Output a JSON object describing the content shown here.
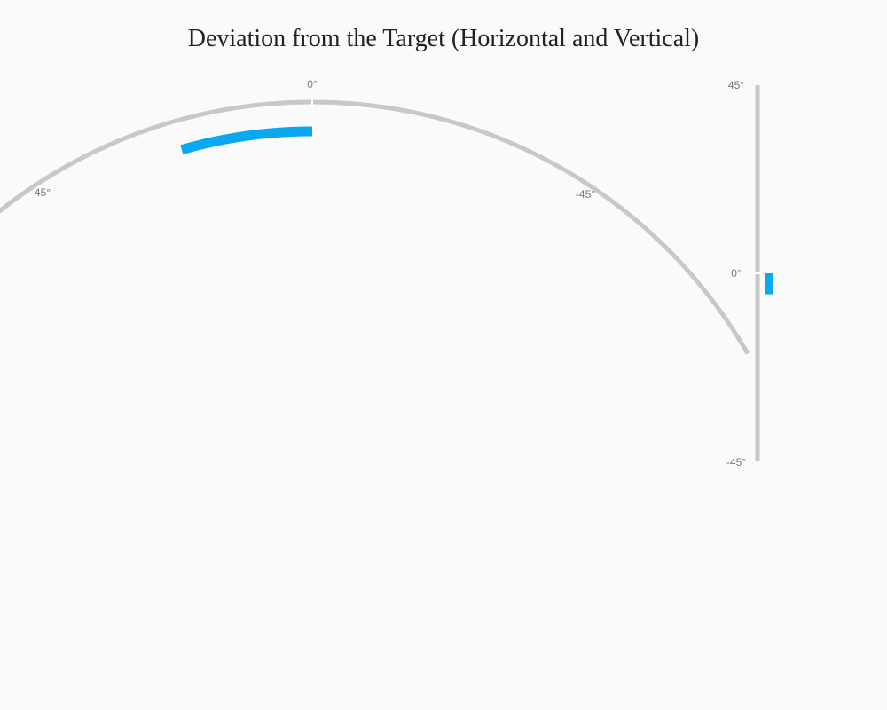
{
  "title": "Deviation from the Target (Horizontal and Vertical)",
  "colors": {
    "track": "#c8c8c8",
    "value": "#0aa8f0",
    "background": "#fafafa"
  },
  "chart_data": [
    {
      "type": "gauge",
      "orientation": "arc",
      "name": "horizontal",
      "range": [
        45,
        -45
      ],
      "min": -45,
      "max": 45,
      "value": 12,
      "tick_labels": [
        "45°",
        "0°",
        "-45°"
      ]
    },
    {
      "type": "gauge",
      "orientation": "vertical",
      "name": "vertical",
      "range": [
        -45,
        45
      ],
      "min": -45,
      "max": 45,
      "value": -5,
      "tick_labels": [
        "45°",
        "0°",
        "-45°"
      ]
    }
  ]
}
